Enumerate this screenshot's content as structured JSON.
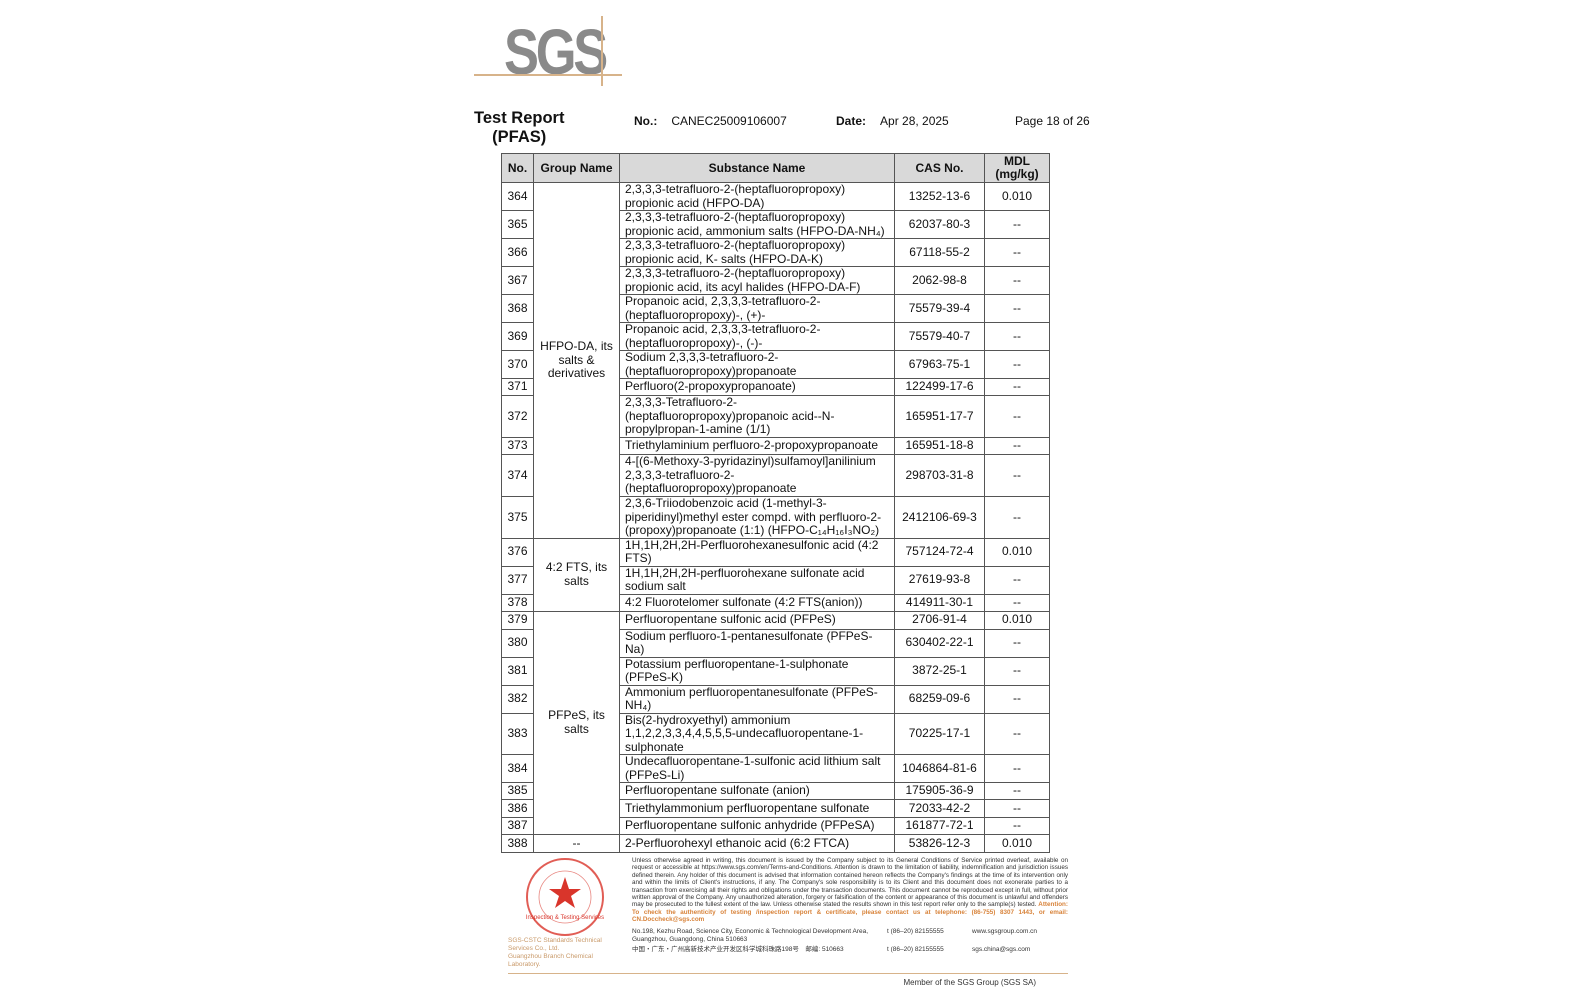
{
  "logo": {
    "text": "SGS"
  },
  "header": {
    "title_line1": "Test Report",
    "title_line2": "(PFAS)",
    "no_label": "No.:",
    "no_value": "CANEC25009106007",
    "date_label": "Date:",
    "date_value": "Apr 28, 2025",
    "page": "Page 18 of 26"
  },
  "table": {
    "columns": [
      "No.",
      "Group Name",
      "Substance Name",
      "CAS No.",
      "MDL\n(mg/kg)"
    ],
    "groups": [
      {
        "name": "HFPO-DA, its\nsalts &\nderivatives",
        "rows": [
          {
            "no": "364",
            "substance": "2,3,3,3-tetrafluoro-2-(heptafluoropropoxy)\npropionic acid (HFPO-DA)",
            "cas": "13252-13-6",
            "mdl": "0.010"
          },
          {
            "no": "365",
            "substance": "2,3,3,3-tetrafluoro-2-(heptafluoropropoxy)\npropionic acid, ammonium salts (HFPO-DA-NH₄)",
            "cas": "62037-80-3",
            "mdl": "--"
          },
          {
            "no": "366",
            "substance": "2,3,3,3-tetrafluoro-2-(heptafluoropropoxy)\npropionic acid, K- salts (HFPO-DA-K)",
            "cas": "67118-55-2",
            "mdl": "--"
          },
          {
            "no": "367",
            "substance": "2,3,3,3-tetrafluoro-2-(heptafluoropropoxy)\npropionic acid, its acyl halides (HFPO-DA-F)",
            "cas": "2062-98-8",
            "mdl": "--"
          },
          {
            "no": "368",
            "substance": "Propanoic acid, 2,3,3,3-tetrafluoro-2-\n(heptafluoropropoxy)-, (+)-",
            "cas": "75579-39-4",
            "mdl": "--"
          },
          {
            "no": "369",
            "substance": "Propanoic acid, 2,3,3,3-tetrafluoro-2-\n(heptafluoropropoxy)-, (-)-",
            "cas": "75579-40-7",
            "mdl": "--"
          },
          {
            "no": "370",
            "substance": "Sodium 2,3,3,3-tetrafluoro-2-\n(heptafluoropropoxy)propanoate",
            "cas": "67963-75-1",
            "mdl": "--"
          },
          {
            "no": "371",
            "substance": "Perfluoro(2-propoxypropanoate)",
            "cas": "122499-17-6",
            "mdl": "--"
          },
          {
            "no": "372",
            "substance": "2,3,3,3-Tetrafluoro-2-\n(heptafluoropropoxy)propanoic acid--N-\npropylpropan-1-amine (1/1)",
            "cas": "165951-17-7",
            "mdl": "--"
          },
          {
            "no": "373",
            "substance": "Triethylaminium perfluoro-2-propoxypropanoate",
            "cas": "165951-18-8",
            "mdl": "--"
          },
          {
            "no": "374",
            "substance": "4-[(6-Methoxy-3-pyridazinyl)sulfamoyl]anilinium\n2,3,3,3-tetrafluoro-2-\n(heptafluoropropoxy)propanoate",
            "cas": "298703-31-8",
            "mdl": "--"
          },
          {
            "no": "375",
            "substance": "2,3,6-Triiodobenzoic acid (1-methyl-3-\npiperidinyl)methyl ester compd. with perfluoro-2-\n(propoxy)propanoate (1:1) (HFPO-C₁₄H₁₆I₃NO₂)",
            "cas": "2412106-69-3",
            "mdl": "--"
          }
        ]
      },
      {
        "name": "4:2 FTS, its\nsalts",
        "rows": [
          {
            "no": "376",
            "substance": "1H,1H,2H,2H-Perfluorohexanesulfonic acid (4:2\nFTS)",
            "cas": "757124-72-4",
            "mdl": "0.010"
          },
          {
            "no": "377",
            "substance": "1H,1H,2H,2H-perfluorohexane sulfonate acid\nsodium salt",
            "cas": "27619-93-8",
            "mdl": "--"
          },
          {
            "no": "378",
            "substance": "4:2 Fluorotelomer sulfonate (4:2 FTS(anion))",
            "cas": "414911-30-1",
            "mdl": "--"
          }
        ]
      },
      {
        "name": "PFPeS, its\nsalts",
        "rows": [
          {
            "no": "379",
            "substance": "Perfluoropentane sulfonic acid (PFPeS)",
            "cas": "2706-91-4",
            "mdl": "0.010"
          },
          {
            "no": "380",
            "substance": "Sodium perfluoro-1-pentanesulfonate (PFPeS-Na)",
            "cas": "630402-22-1",
            "mdl": "--"
          },
          {
            "no": "381",
            "substance": "Potassium perfluoropentane-1-sulphonate\n(PFPeS-K)",
            "cas": "3872-25-1",
            "mdl": "--"
          },
          {
            "no": "382",
            "substance": "Ammonium perfluoropentanesulfonate (PFPeS-\nNH₄)",
            "cas": "68259-09-6",
            "mdl": "--"
          },
          {
            "no": "383",
            "substance": "Bis(2-hydroxyethyl) ammonium\n1,1,2,2,3,3,4,4,5,5,5-undecafluoropentane-1-\nsulphonate",
            "cas": "70225-17-1",
            "mdl": "--"
          },
          {
            "no": "384",
            "substance": "Undecafluoropentane-1-sulfonic acid lithium salt\n(PFPeS-Li)",
            "cas": "1046864-81-6",
            "mdl": "--"
          },
          {
            "no": "385",
            "substance": "Perfluoropentane sulfonate (anion)",
            "cas": "175905-36-9",
            "mdl": "--"
          },
          {
            "no": "386",
            "substance": "Triethylammonium perfluoropentane sulfonate",
            "cas": "72033-42-2",
            "mdl": "--"
          },
          {
            "no": "387",
            "substance": "Perfluoropentane sulfonic anhydride (PFPeSA)",
            "cas": "161877-72-1",
            "mdl": "--"
          }
        ]
      },
      {
        "name": "--",
        "rows": [
          {
            "no": "388",
            "substance": "2-Perfluorohexyl ethanoic acid (6:2 FTCA)",
            "cas": "53826-12-3",
            "mdl": "0.010"
          }
        ]
      }
    ]
  },
  "footer": {
    "disclaimer": "Unless otherwise agreed in writing, this document is issued by the Company subject to its General Conditions of Service printed overleaf, available on request or accessible at https://www.sgs.com/en/Terms-and-Conditions. Attention is drawn to the limitation of liability, indemnification and jurisdiction issues defined therein. Any holder of this document is advised that information contained hereon reflects the Company's findings at the time of its intervention only and within the limits of Client's instructions, if any. The Company's sole responsibility is to its Client and this document does not exonerate parties to a transaction from exercising all their rights and obligations under the transaction documents. This document cannot be reproduced except in full, without prior written approval of the Company. Any unauthorized alteration, forgery or falsification of the content or appearance of this document is unlawful and offenders may be prosecuted to the fullest extent of the law. Unless otherwise stated the results shown in this test report refer only to the sample(s) tested.",
    "attention": "Attention: To check the authenticity of testing /inspection report & certificate, please contact us at telephone: (86-755) 8307 1443, or email: CN.Doccheck@sgs.com",
    "address_en": "No.198, Kezhu Road, Science City, Economic & Technological Development Area, Guangzhou, Guangdong, China 510663",
    "address_cn": "中国・广东・广州高新技术产业开发区科学城科珠路198号　邮编: 510663",
    "tel1": "t (86–20) 82155555",
    "tel2": "t (86–20) 82155555",
    "web": "www.sgsgroup.com.cn",
    "email": "sgs.china@sgs.com",
    "member": "Member of the SGS Group (SGS SA)",
    "lab_line1": "SGS-CSTC Standards Technical Services Co., Ltd.",
    "lab_line2": "Guangzhou Branch Chemical Laboratory.",
    "stamp_text": "Inspection & Testing Services"
  },
  "colors": {
    "logo_gray": "#8a8a8a",
    "accent_tan": "#d7b38a",
    "stamp_red": "#d9352b",
    "attention_orange": "#d8833a",
    "header_bg": "#d9d9d9"
  }
}
